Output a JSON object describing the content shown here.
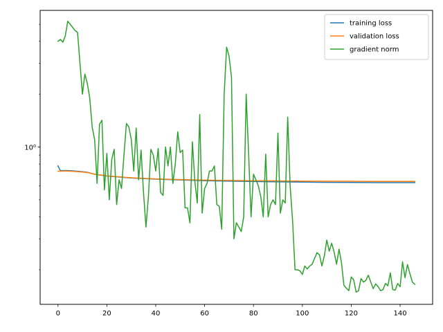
{
  "chart_data": {
    "type": "line",
    "title": "",
    "xlabel": "",
    "ylabel": "",
    "xlim": [
      -7.3,
      153.3
    ],
    "ylim": [
      0.127,
      6.0
    ],
    "yscale": "log",
    "grid": false,
    "legend_position": "upper-right",
    "x_ticks": [
      0,
      20,
      40,
      60,
      80,
      100,
      120,
      140
    ],
    "x_tick_labels": [
      "0",
      "20",
      "40",
      "60",
      "80",
      "100",
      "120",
      "140"
    ],
    "y_ticks": [
      1
    ],
    "y_tick_labels": [
      "10⁰"
    ],
    "series": [
      {
        "name": "training loss",
        "color": "#1f77b4",
        "x": [
          0,
          1,
          3,
          5,
          7,
          10,
          12,
          15,
          20,
          30,
          40,
          50,
          60,
          70,
          80,
          90,
          100,
          110,
          120,
          130,
          146
        ],
        "y": [
          0.78,
          0.733,
          0.735,
          0.733,
          0.73,
          0.723,
          0.718,
          0.7,
          0.683,
          0.666,
          0.656,
          0.649,
          0.643,
          0.639,
          0.636,
          0.633,
          0.631,
          0.629,
          0.628,
          0.627,
          0.627
        ]
      },
      {
        "name": "validation loss",
        "color": "#ff7f0e",
        "x": [
          0,
          1,
          3,
          5,
          7,
          10,
          12,
          15,
          20,
          30,
          40,
          50,
          60,
          70,
          80,
          90,
          100,
          110,
          120,
          130,
          146
        ],
        "y": [
          0.728,
          0.728,
          0.73,
          0.728,
          0.726,
          0.72,
          0.716,
          0.7,
          0.685,
          0.668,
          0.658,
          0.652,
          0.648,
          0.645,
          0.643,
          0.641,
          0.639,
          0.638,
          0.638,
          0.637,
          0.637
        ]
      },
      {
        "name": "gradient norm",
        "color": "#2ca02c",
        "x": [
          0,
          1,
          2,
          3,
          4,
          5,
          6,
          7,
          8,
          9,
          10,
          11,
          12,
          13,
          14,
          15,
          16,
          17,
          18,
          19,
          20,
          21,
          22,
          23,
          24,
          25,
          26,
          27,
          28,
          29,
          30,
          31,
          32,
          33,
          34,
          35,
          36,
          37,
          38,
          39,
          40,
          41,
          42,
          43,
          44,
          45,
          46,
          47,
          48,
          49,
          50,
          51,
          52,
          53,
          54,
          55,
          56,
          57,
          58,
          59,
          60,
          61,
          62,
          63,
          64,
          65,
          66,
          67,
          68,
          69,
          70,
          71,
          72,
          73,
          74,
          75,
          76,
          77,
          78,
          79,
          80,
          81,
          82,
          83,
          84,
          85,
          86,
          87,
          88,
          89,
          90,
          91,
          92,
          93,
          94,
          95,
          96,
          97,
          98,
          99,
          100,
          101,
          102,
          103,
          104,
          105,
          106,
          107,
          108,
          109,
          110,
          111,
          112,
          113,
          114,
          115,
          116,
          117,
          118,
          119,
          120,
          121,
          122,
          123,
          124,
          125,
          126,
          127,
          128,
          129,
          130,
          131,
          132,
          133,
          134,
          135,
          136,
          137,
          138,
          139,
          140,
          141,
          142,
          143,
          144,
          145,
          146
        ],
        "y": [
          4.0,
          4.1,
          3.95,
          4.3,
          5.2,
          5.0,
          4.8,
          4.6,
          4.5,
          3.0,
          2.0,
          2.6,
          2.3,
          1.9,
          1.3,
          1.1,
          0.62,
          1.35,
          1.42,
          0.57,
          0.92,
          0.5,
          0.85,
          0.97,
          0.47,
          0.65,
          0.58,
          0.9,
          1.36,
          1.3,
          1.1,
          0.73,
          1.28,
          0.65,
          0.96,
          0.55,
          0.35,
          0.52,
          0.97,
          0.9,
          0.73,
          0.98,
          0.55,
          0.53,
          1.0,
          0.78,
          1.0,
          0.62,
          0.8,
          1.22,
          0.93,
          0.96,
          0.45,
          0.45,
          0.37,
          1.07,
          0.64,
          0.48,
          1.53,
          0.42,
          0.58,
          0.62,
          0.73,
          0.73,
          0.78,
          0.47,
          0.46,
          0.34,
          2.0,
          3.7,
          3.3,
          2.5,
          0.3,
          0.37,
          0.35,
          0.33,
          0.4,
          2.0,
          0.92,
          0.4,
          0.7,
          0.65,
          0.6,
          0.52,
          0.4,
          0.91,
          0.4,
          0.47,
          0.5,
          0.47,
          1.2,
          0.42,
          0.5,
          0.48,
          1.48,
          0.6,
          0.38,
          0.2,
          0.2,
          0.197,
          0.188,
          0.21,
          0.202,
          0.21,
          0.215,
          0.232,
          0.25,
          0.243,
          0.21,
          0.24,
          0.295,
          0.255,
          0.283,
          0.252,
          0.215,
          0.262,
          0.22,
          0.163,
          0.157,
          0.152,
          0.182,
          0.175,
          0.149,
          0.152,
          0.178,
          0.17,
          0.174,
          0.186,
          0.17,
          0.156,
          0.166,
          0.16,
          0.152,
          0.154,
          0.167,
          0.162,
          0.192,
          0.154,
          0.153,
          0.167,
          0.16,
          0.222,
          0.18,
          0.214,
          0.19,
          0.17,
          0.165
        ]
      }
    ]
  }
}
